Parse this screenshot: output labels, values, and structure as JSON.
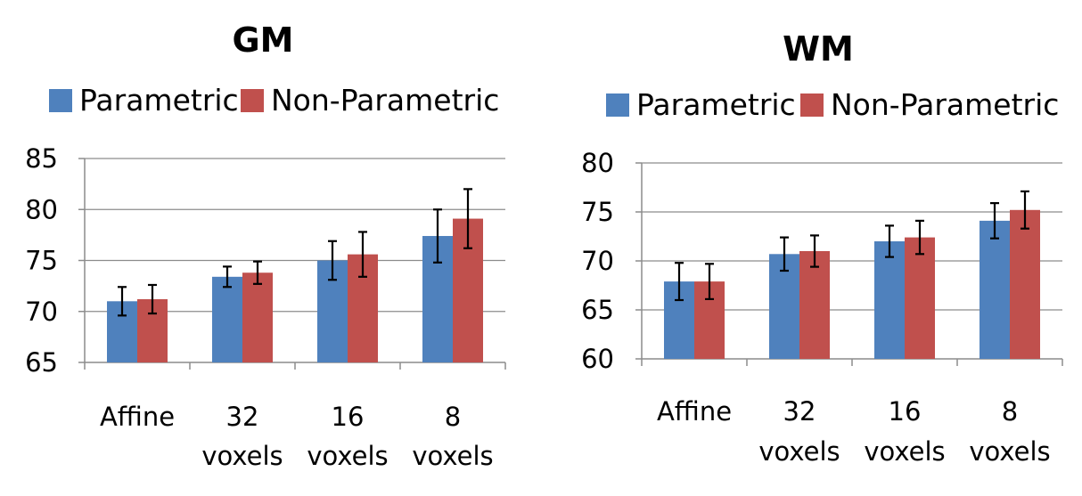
{
  "colors": {
    "parametric": "#4f81bd",
    "non_parametric": "#c0504d"
  },
  "chart_data": [
    {
      "type": "bar",
      "title": "GM",
      "legend": [
        "Parametric",
        "Non-Parametric"
      ],
      "legend_placement": "top",
      "categories": [
        [
          "Affine"
        ],
        [
          "32",
          "voxels"
        ],
        [
          "16",
          "voxels"
        ],
        [
          "8",
          "voxels"
        ]
      ],
      "series": [
        {
          "name": "Parametric",
          "values": [
            71.0,
            73.4,
            75.0,
            77.4
          ],
          "errors": [
            1.4,
            1.0,
            1.9,
            2.6
          ]
        },
        {
          "name": "Non-Parametric",
          "values": [
            71.2,
            73.8,
            75.6,
            79.1
          ],
          "errors": [
            1.4,
            1.1,
            2.2,
            2.9
          ]
        }
      ],
      "ylim": [
        65,
        85
      ],
      "yticks": [
        65,
        70,
        75,
        80,
        85
      ],
      "grid": true
    },
    {
      "type": "bar",
      "title": "WM",
      "legend": [
        "Parametric",
        "Non-Parametric"
      ],
      "legend_placement": "top",
      "categories": [
        [
          "Affine"
        ],
        [
          "32",
          "voxels"
        ],
        [
          "16",
          "voxels"
        ],
        [
          "8",
          "voxels"
        ]
      ],
      "series": [
        {
          "name": "Parametric",
          "values": [
            67.9,
            70.7,
            72.0,
            74.1
          ],
          "errors": [
            1.9,
            1.7,
            1.6,
            1.8
          ]
        },
        {
          "name": "Non-Parametric",
          "values": [
            67.9,
            71.0,
            72.4,
            75.2
          ],
          "errors": [
            1.8,
            1.6,
            1.7,
            1.9
          ]
        }
      ],
      "ylim": [
        60,
        80
      ],
      "yticks": [
        60,
        65,
        70,
        75,
        80
      ],
      "grid": true
    }
  ]
}
